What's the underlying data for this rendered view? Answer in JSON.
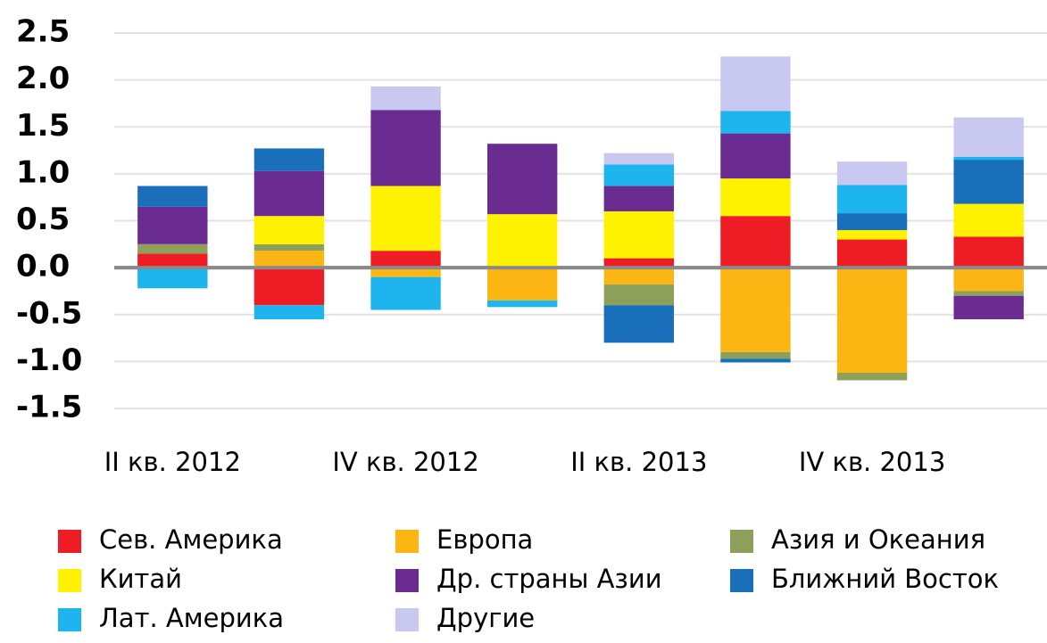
{
  "chart_data": {
    "type": "bar",
    "stacked": true,
    "categories": [
      "II кв. 2012",
      null,
      "IV кв. 2012",
      null,
      "II кв. 2013",
      null,
      "IV кв. 2013",
      null
    ],
    "series": [
      {
        "name": "Сев. Америка",
        "color": "#ee1c25",
        "values": [
          0.15,
          -0.4,
          0.18,
          0,
          0.1,
          0.55,
          0.3,
          0.33
        ]
      },
      {
        "name": "Европа",
        "color": "#fbb613",
        "values": [
          0,
          0.18,
          -0.1,
          -0.35,
          -0.18,
          -0.9,
          -1.12,
          -0.25
        ]
      },
      {
        "name": "Азия и Океания",
        "color": "#8da05a",
        "values": [
          0.1,
          0.07,
          0,
          0,
          -0.22,
          -0.07,
          -0.08,
          -0.05
        ]
      },
      {
        "name": "Китай",
        "color": "#fff200",
        "values": [
          0,
          0.3,
          0.69,
          0.57,
          0.5,
          0.4,
          0.1,
          0.35
        ]
      },
      {
        "name": "Др. страны Азии",
        "color": "#6a2c91",
        "values": [
          0.4,
          0.48,
          0.81,
          0.75,
          0.27,
          0.48,
          0,
          -0.25
        ]
      },
      {
        "name": "Ближний Восток",
        "color": "#1a6fba",
        "values": [
          0.22,
          0.24,
          0,
          0,
          -0.4,
          -0.04,
          0.18,
          0.47
        ]
      },
      {
        "name": "Лат. Америка",
        "color": "#1eb4ee",
        "values": [
          -0.22,
          -0.15,
          -0.35,
          -0.07,
          0.23,
          0.24,
          0.3,
          0.03
        ]
      },
      {
        "name": "Другие",
        "color": "#c9c8f0",
        "values": [
          0,
          0,
          0.25,
          0,
          0.12,
          0.58,
          0.25,
          0.42
        ]
      }
    ],
    "ylim": [
      -1.5,
      2.5
    ],
    "yticks": [
      2.5,
      {
        "value": 2,
        "label": "2.0"
      },
      1.5,
      {
        "value": 1,
        "label": "1.0"
      },
      0.5,
      {
        "value": 0,
        "label": "0.0"
      },
      -0.5,
      {
        "value": -1,
        "label": "-1.0"
      },
      -1.5
    ],
    "grid": true
  }
}
